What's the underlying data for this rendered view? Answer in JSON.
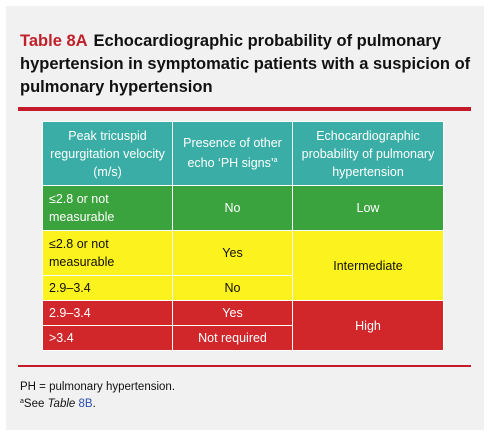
{
  "title": {
    "number": "Table 8A",
    "text": "Echocardiographic probability of pulmonary hypertension in symptomatic patients with a suspicion of pulmonary hypertension"
  },
  "colors": {
    "title_number": "#c0202a",
    "rule": "#c51a2a",
    "header_bg": "#3aaea6",
    "low": "#3aa33d",
    "intermediate": "#fbf21e",
    "high": "#d1262a"
  },
  "table": {
    "headers": [
      "Peak tricuspid regurgitation velocity (m/s)",
      "Presence of other echo ‘PH signs’",
      "Echocardiographic probability of pulmonary hypertension"
    ],
    "header_superscript": "a",
    "rows": [
      {
        "velocity": "≤2.8 or not measurable",
        "signs": "No",
        "probability": "Low"
      },
      {
        "velocity": "≤2.8 or not measurable",
        "signs": "Yes",
        "probability": "Intermediate"
      },
      {
        "velocity": "2.9–3.4",
        "signs": "No",
        "probability": "Intermediate"
      },
      {
        "velocity": "2.9–3.4",
        "signs": "Yes",
        "probability": "High"
      },
      {
        "velocity": ">3.4",
        "signs": "Not required",
        "probability": "High"
      }
    ]
  },
  "footnotes": {
    "abbreviation": "PH = pulmonary hypertension.",
    "a_marker": "a",
    "a_prefix": "See ",
    "a_table_word": "Table",
    "a_table_ref": "8B",
    "a_suffix": "."
  }
}
